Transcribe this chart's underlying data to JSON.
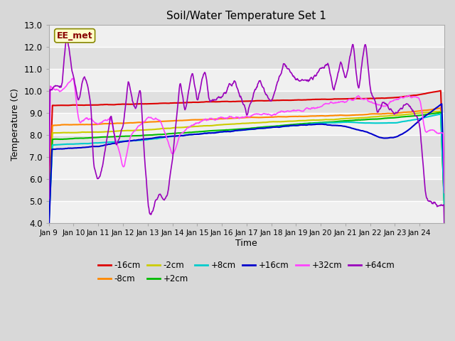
{
  "title": "Soil/Water Temperature Set 1",
  "xlabel": "Time",
  "ylabel": "Temperature (C)",
  "ylim": [
    4.0,
    13.0
  ],
  "yticks": [
    4.0,
    5.0,
    6.0,
    7.0,
    8.0,
    9.0,
    10.0,
    11.0,
    12.0,
    13.0
  ],
  "xtick_labels": [
    "Jan 9",
    "Jan 10",
    "Jan 11",
    "Jan 12",
    "Jan 13",
    "Jan 14",
    "Jan 15",
    "Jan 16",
    "Jan 17",
    "Jan 18",
    "Jan 19",
    "Jan 20",
    "Jan 21",
    "Jan 22",
    "Jan 23",
    "Jan 24"
  ],
  "series_colors": {
    "-16cm": "#dd0000",
    "-8cm": "#ff8800",
    "-2cm": "#cccc00",
    "+2cm": "#00bb00",
    "+8cm": "#00cccc",
    "+16cm": "#0000cc",
    "+32cm": "#ff44ff",
    "+64cm": "#9900bb"
  },
  "legend_label": "EE_met",
  "background_color": "#d8d8d8",
  "plot_bg_light": "#e8e8e8",
  "plot_bg_dark": "#d8d8d8",
  "grid_color": "#ffffff"
}
